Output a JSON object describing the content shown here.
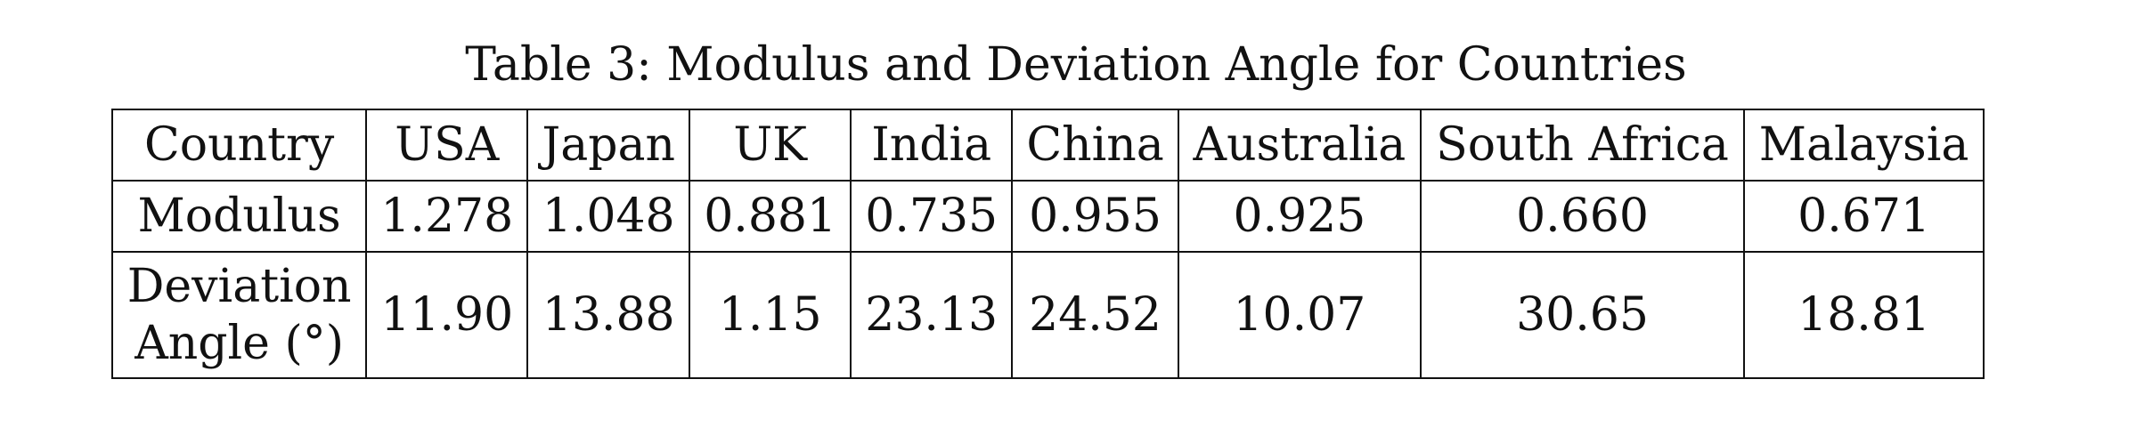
{
  "caption": "Table 3: Modulus and Deviation Angle for Countries",
  "table": {
    "header_label": "Country",
    "countries": [
      "USA",
      "Japan",
      "UK",
      "India",
      "China",
      "Australia",
      "South Africa",
      "Malaysia"
    ],
    "modulus_label": "Modulus",
    "modulus": [
      "1.278",
      "1.048",
      "0.881",
      "0.735",
      "0.955",
      "0.925",
      "0.660",
      "0.671"
    ],
    "deviation_label_line1": "Deviation",
    "deviation_label_line2": "Angle (°)",
    "deviation": [
      "11.90",
      "13.88",
      "1.15",
      "23.13",
      "24.52",
      "10.07",
      "30.65",
      "18.81"
    ]
  }
}
